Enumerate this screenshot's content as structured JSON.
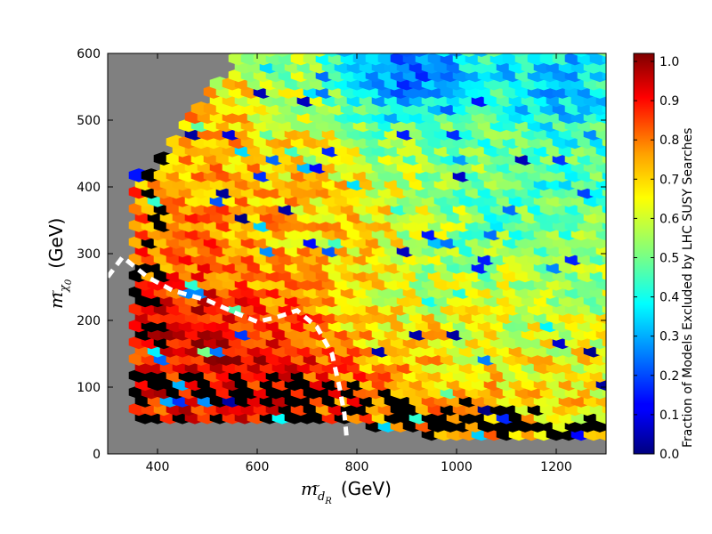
{
  "chart_data": {
    "type": "heatmap",
    "subtype": "hexbin",
    "title": "",
    "xlabel": {
      "math": "m",
      "sub": "d",
      "sub_accent": "~",
      "sub_sub": "R",
      "unit": "(GeV)"
    },
    "ylabel": {
      "math": "m",
      "sub": "χ",
      "sub_accent": "~",
      "sub_sub": "0",
      "unit": "(GeV)"
    },
    "xlim": [
      300,
      1300
    ],
    "ylim": [
      0,
      600
    ],
    "xticks": [
      400,
      600,
      800,
      1000,
      1200
    ],
    "yticks": [
      0,
      100,
      200,
      300,
      400,
      500,
      600
    ],
    "background_color": "#808080",
    "colormap": "jet",
    "colorbar": {
      "label": "Fraction of Models Excluded by LHC SUSY Searches",
      "range": [
        0.0,
        1.0
      ],
      "ticks": [
        "0.0",
        "0.1",
        "0.2",
        "0.3",
        "0.4",
        "0.5",
        "0.6",
        "0.7",
        "0.8",
        "0.9",
        "1.0"
      ]
    },
    "black_cells_meaning": "no data",
    "populated_region_upper_edge": [
      [
        390,
        430
      ],
      [
        500,
        520
      ],
      [
        580,
        600
      ],
      [
        1300,
        600
      ]
    ],
    "populated_region_lower_edge": [
      [
        730,
        100
      ],
      [
        1300,
        40
      ]
    ],
    "trend": "fraction excluded is highest (~0.8-1.0) at low squark mass and low neutralino mass, decreasing toward ~0.3-0.5 at high masses",
    "exclusion_contour": {
      "style": "white dashed",
      "points": [
        [
          300,
          265
        ],
        [
          330,
          295
        ],
        [
          380,
          265
        ],
        [
          430,
          245
        ],
        [
          500,
          230
        ],
        [
          560,
          210
        ],
        [
          600,
          198
        ],
        [
          640,
          205
        ],
        [
          680,
          215
        ],
        [
          720,
          190
        ],
        [
          750,
          150
        ],
        [
          765,
          100
        ],
        [
          775,
          60
        ],
        [
          780,
          20
        ]
      ]
    },
    "bins": [
      {
        "x": 450,
        "y": 200,
        "z": 0.95
      },
      {
        "x": 500,
        "y": 170,
        "z": 0.95
      },
      {
        "x": 550,
        "y": 140,
        "z": 0.92
      },
      {
        "x": 600,
        "y": 150,
        "z": 0.9
      },
      {
        "x": 650,
        "y": 130,
        "z": 0.88
      },
      {
        "x": 700,
        "y": 150,
        "z": 0.85
      },
      {
        "x": 500,
        "y": 250,
        "z": 0.85
      },
      {
        "x": 420,
        "y": 280,
        "z": 0.75
      },
      {
        "x": 600,
        "y": 280,
        "z": 0.7
      },
      {
        "x": 700,
        "y": 320,
        "z": 0.65
      },
      {
        "x": 800,
        "y": 200,
        "z": 0.62
      },
      {
        "x": 900,
        "y": 250,
        "z": 0.55
      },
      {
        "x": 1000,
        "y": 300,
        "z": 0.5
      },
      {
        "x": 1100,
        "y": 350,
        "z": 0.45
      },
      {
        "x": 1200,
        "y": 400,
        "z": 0.42
      },
      {
        "x": 1200,
        "y": 550,
        "z": 0.3
      },
      {
        "x": 900,
        "y": 580,
        "z": 0.2
      }
    ]
  }
}
